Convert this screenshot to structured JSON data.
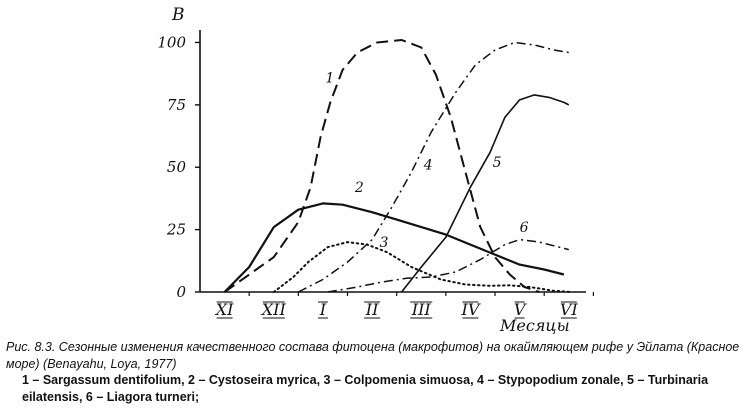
{
  "chart_data": {
    "type": "line",
    "ylabel": "B",
    "xlabel": "Месяцы",
    "y_ticks": [
      "0",
      "25",
      "50",
      "75",
      "100"
    ],
    "ylim": [
      0,
      105
    ],
    "x_ticks": [
      "XI",
      "XII",
      "I",
      "II",
      "III",
      "IV",
      "V",
      "VI"
    ],
    "xlim": [
      0,
      7.85
    ],
    "grid": false,
    "series": [
      {
        "name": "1",
        "style": "dashed",
        "points": [
          [
            0.5,
            0
          ],
          [
            1.5,
            14
          ],
          [
            2.0,
            28
          ],
          [
            2.25,
            42
          ],
          [
            2.45,
            62
          ],
          [
            2.65,
            76
          ],
          [
            2.9,
            89
          ],
          [
            3.2,
            96
          ],
          [
            3.6,
            100
          ],
          [
            4.1,
            101
          ],
          [
            4.5,
            98
          ],
          [
            4.8,
            87
          ],
          [
            5.1,
            70
          ],
          [
            5.4,
            48
          ],
          [
            5.7,
            26
          ],
          [
            6.0,
            14
          ],
          [
            6.3,
            7
          ],
          [
            6.6,
            2
          ],
          [
            6.9,
            0
          ]
        ]
      },
      {
        "name": "2",
        "style": "solid",
        "points": [
          [
            0.5,
            0
          ],
          [
            1.0,
            10
          ],
          [
            1.5,
            26
          ],
          [
            2.0,
            33
          ],
          [
            2.5,
            35.5
          ],
          [
            2.9,
            35
          ],
          [
            3.5,
            32
          ],
          [
            4.0,
            29
          ],
          [
            4.5,
            26
          ],
          [
            5.0,
            23
          ],
          [
            5.5,
            19
          ],
          [
            6.0,
            15
          ],
          [
            6.5,
            11
          ],
          [
            7.0,
            9
          ],
          [
            7.4,
            7
          ]
        ]
      },
      {
        "name": "3",
        "style": "dotted",
        "points": [
          [
            1.5,
            0
          ],
          [
            1.9,
            6
          ],
          [
            2.2,
            12
          ],
          [
            2.6,
            18
          ],
          [
            3.0,
            20
          ],
          [
            3.4,
            19
          ],
          [
            3.8,
            16
          ],
          [
            4.3,
            10
          ],
          [
            4.9,
            5
          ],
          [
            5.4,
            3
          ],
          [
            5.9,
            2.5
          ],
          [
            6.3,
            2.7
          ],
          [
            6.7,
            2
          ],
          [
            7.2,
            0.5
          ],
          [
            7.55,
            0
          ]
        ]
      },
      {
        "name": "4",
        "style": "dash-dot",
        "points": [
          [
            2.0,
            0
          ],
          [
            2.5,
            5
          ],
          [
            3.0,
            12
          ],
          [
            3.5,
            21
          ],
          [
            3.9,
            34
          ],
          [
            4.3,
            48
          ],
          [
            4.7,
            64
          ],
          [
            5.2,
            80
          ],
          [
            5.6,
            91
          ],
          [
            6.0,
            97
          ],
          [
            6.4,
            100
          ],
          [
            6.8,
            99
          ],
          [
            7.2,
            97
          ],
          [
            7.5,
            96
          ]
        ]
      },
      {
        "name": "5",
        "style": "solid-thin",
        "points": [
          [
            4.1,
            0
          ],
          [
            4.5,
            10
          ],
          [
            5.0,
            22
          ],
          [
            5.5,
            42
          ],
          [
            5.9,
            56
          ],
          [
            6.2,
            70
          ],
          [
            6.5,
            77
          ],
          [
            6.8,
            79
          ],
          [
            7.1,
            78
          ],
          [
            7.4,
            76
          ],
          [
            7.5,
            75
          ]
        ]
      },
      {
        "name": "6",
        "style": "dash-dot",
        "points": [
          [
            2.6,
            0
          ],
          [
            3.2,
            2
          ],
          [
            3.7,
            4
          ],
          [
            4.2,
            5.5
          ],
          [
            4.7,
            6
          ],
          [
            5.2,
            8
          ],
          [
            5.7,
            13
          ],
          [
            6.2,
            19
          ],
          [
            6.5,
            21
          ],
          [
            6.9,
            20
          ],
          [
            7.3,
            18
          ],
          [
            7.5,
            17
          ]
        ]
      }
    ]
  },
  "caption": {
    "head": "Рис. 8.3. Сезонные изменения качественного состава фитоцена (макрофитов) на окаймляющем рифе у Эйлата (Красное море)  (Benayahu, Loya, 1977)",
    "legend": "1 – Sargassum dentifolium, 2 – Cystoseira myrica, 3 – Colpomenia simuosa, 4 – Stypopodium zonale, 5 – Turbinaria eilatensis, 6 – Liagora turneri;"
  }
}
